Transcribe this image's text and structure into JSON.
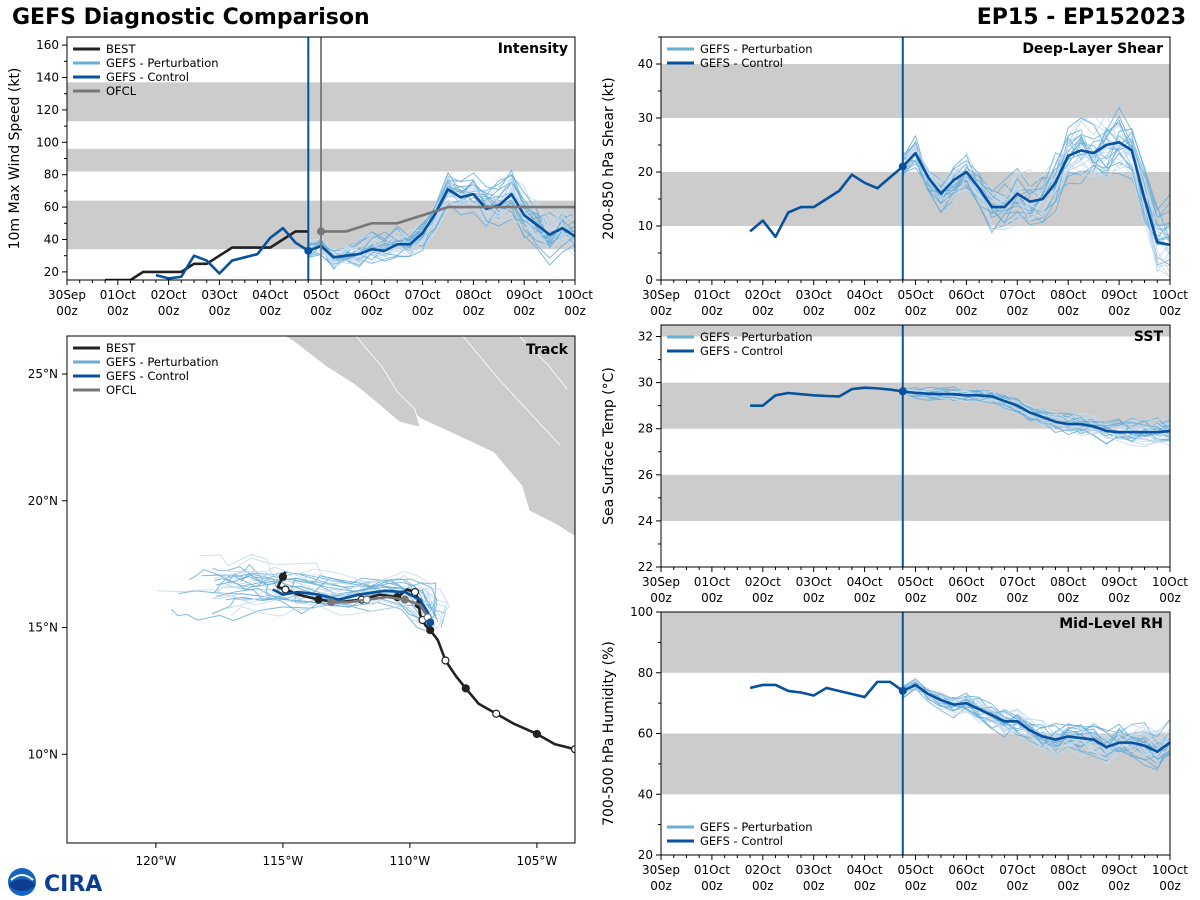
{
  "header": {
    "title": "GEFS Diagnostic Comparison",
    "storm": "EP15 - EP152023"
  },
  "colors": {
    "best": "#222222",
    "perturbation": "#6baed6",
    "perturbation_light": "#c6dbef",
    "control": "#08519c",
    "ofcl": "#777777",
    "band": "#cccccc",
    "land": "#cccccc"
  },
  "time_axis": {
    "ticks": [
      "30Sep",
      "01Oct",
      "02Oct",
      "03Oct",
      "04Oct",
      "05Oct",
      "06Oct",
      "07Oct",
      "08Oct",
      "09Oct",
      "10Oct"
    ],
    "sub": "00z",
    "init_day": 4.75
  },
  "legend_labels": {
    "best": "BEST",
    "perturbation": "GEFS - Perturbation",
    "control": "GEFS - Control",
    "ofcl": "OFCL"
  },
  "logo": {
    "text": "CIRA"
  },
  "chart_data": [
    {
      "id": "intensity",
      "type": "line",
      "title": "Intensity",
      "ylabel": "10m Max Wind Speed (kt)",
      "ylim": [
        15,
        165
      ],
      "yticks": [
        20,
        40,
        60,
        80,
        100,
        120,
        140,
        160
      ],
      "bands": [
        [
          34,
          64
        ],
        [
          82,
          96
        ],
        [
          113,
          137
        ]
      ],
      "xlim": [
        0,
        10
      ],
      "ofcl_marker_day": 5.0,
      "series": [
        {
          "name": "BEST",
          "x": [
            0.75,
            1.25,
            1.5,
            2.0,
            2.25,
            2.5,
            2.75,
            3.0,
            3.25,
            3.5,
            3.75,
            4.0,
            4.25,
            4.5,
            4.75
          ],
          "y": [
            15,
            15,
            20,
            20,
            20,
            25,
            25,
            30,
            35,
            35,
            35,
            35,
            40,
            45,
            45
          ]
        },
        {
          "name": "GEFS - Control",
          "x": [
            1.75,
            2.0,
            2.25,
            2.5,
            2.75,
            3.0,
            3.25,
            3.5,
            3.75,
            4.0,
            4.25,
            4.5,
            4.75,
            5.0,
            5.25,
            5.5,
            5.75,
            6.0,
            6.25,
            6.5,
            6.75,
            7.0,
            7.25,
            7.5,
            7.75,
            8.0,
            8.25,
            8.5,
            8.75,
            9.0,
            9.25,
            9.5,
            9.75,
            10.0
          ],
          "y": [
            18,
            16,
            17,
            30,
            27,
            19,
            27,
            29,
            31,
            41,
            47,
            38,
            33,
            36,
            29,
            30,
            31,
            34,
            33,
            37,
            37,
            44,
            56,
            71,
            66,
            68,
            59,
            61,
            68,
            55,
            49,
            43,
            47,
            42
          ]
        },
        {
          "name": "OFCL",
          "x": [
            5.0,
            5.5,
            6.0,
            6.5,
            7.0,
            7.5,
            8.0,
            8.5,
            9.0,
            9.5,
            10.0
          ],
          "y": [
            45,
            45,
            50,
            50,
            55,
            60,
            60,
            60,
            60,
            60,
            60
          ]
        }
      ]
    },
    {
      "id": "shear",
      "type": "line",
      "title": "Deep-Layer Shear",
      "ylabel": "200-850 hPa Shear (kt)",
      "ylim": [
        0,
        45
      ],
      "yticks": [
        0,
        10,
        20,
        30,
        40
      ],
      "bands": [
        [
          10,
          20
        ],
        [
          30,
          40
        ]
      ],
      "xlim": [
        0,
        10
      ],
      "series": [
        {
          "name": "GEFS - Control",
          "x": [
            1.75,
            2.0,
            2.25,
            2.5,
            2.75,
            3.0,
            3.25,
            3.5,
            3.75,
            4.0,
            4.25,
            4.5,
            4.75,
            5.0,
            5.25,
            5.5,
            5.75,
            6.0,
            6.25,
            6.5,
            6.75,
            7.0,
            7.25,
            7.5,
            7.75,
            8.0,
            8.25,
            8.5,
            8.75,
            9.0,
            9.25,
            9.5,
            9.75,
            10.0
          ],
          "y": [
            9,
            11,
            8,
            12.5,
            13.5,
            13.5,
            15,
            16.5,
            19.5,
            18,
            17,
            19,
            21,
            23.5,
            19,
            16,
            18.5,
            20,
            17,
            13.5,
            13.5,
            16,
            14.5,
            15,
            18,
            23,
            24,
            23.5,
            25,
            25.5,
            24,
            15,
            7,
            6.5
          ]
        }
      ]
    },
    {
      "id": "sst",
      "type": "line",
      "title": "SST",
      "ylabel": "Sea Surface Temp (°C)",
      "ylim": [
        22,
        32.5
      ],
      "yticks": [
        22,
        24,
        26,
        28,
        30,
        32
      ],
      "bands": [
        [
          24,
          26
        ],
        [
          28,
          30
        ],
        [
          32,
          32.5
        ]
      ],
      "xlim": [
        0,
        10
      ],
      "series": [
        {
          "name": "GEFS - Control",
          "x": [
            1.75,
            2.0,
            2.25,
            2.5,
            2.75,
            3.0,
            3.25,
            3.5,
            3.75,
            4.0,
            4.25,
            4.5,
            4.75,
            5.0,
            5.25,
            5.5,
            5.75,
            6.0,
            6.25,
            6.5,
            6.75,
            7.0,
            7.25,
            7.5,
            7.75,
            8.0,
            8.25,
            8.5,
            8.75,
            9.0,
            9.25,
            9.5,
            9.75,
            10.0
          ],
          "y": [
            29.0,
            29.0,
            29.45,
            29.55,
            29.5,
            29.45,
            29.42,
            29.4,
            29.72,
            29.78,
            29.75,
            29.7,
            29.62,
            29.55,
            29.52,
            29.5,
            29.5,
            29.45,
            29.45,
            29.4,
            29.2,
            29.0,
            28.7,
            28.5,
            28.3,
            28.2,
            28.2,
            28.1,
            27.9,
            27.85,
            27.85,
            27.85,
            27.85,
            27.9
          ]
        }
      ]
    },
    {
      "id": "rh",
      "type": "line",
      "title": "Mid-Level RH",
      "ylabel": "700-500 hPa Humidity (%)",
      "ylim": [
        20,
        100
      ],
      "yticks": [
        20,
        40,
        60,
        80,
        100
      ],
      "bands": [
        [
          40,
          60
        ],
        [
          80,
          100
        ]
      ],
      "xlim": [
        0,
        10
      ],
      "series": [
        {
          "name": "GEFS - Control",
          "x": [
            1.75,
            2.0,
            2.25,
            2.5,
            2.75,
            3.0,
            3.25,
            3.5,
            3.75,
            4.0,
            4.25,
            4.5,
            4.75,
            5.0,
            5.25,
            5.5,
            5.75,
            6.0,
            6.25,
            6.5,
            6.75,
            7.0,
            7.25,
            7.5,
            7.75,
            8.0,
            8.25,
            8.5,
            8.75,
            9.0,
            9.25,
            9.5,
            9.75,
            10.0
          ],
          "y": [
            75,
            76,
            76,
            74,
            73.5,
            72.5,
            75,
            74,
            73,
            72,
            77,
            77,
            74,
            76,
            73,
            71,
            69.5,
            70,
            68,
            66,
            64,
            64,
            61,
            59,
            58,
            59,
            58.5,
            58,
            55.5,
            57,
            57,
            56,
            54,
            57
          ]
        }
      ]
    },
    {
      "id": "track",
      "type": "scatter",
      "title": "Track",
      "xlim": [
        -123.5,
        -103.5
      ],
      "ylim": [
        6.5,
        26.5
      ],
      "xticks": [
        -120,
        -115,
        -110,
        -105
      ],
      "xtick_labels": [
        "120°W",
        "115°W",
        "110°W",
        "105°W"
      ],
      "yticks": [
        10,
        15,
        20,
        25
      ],
      "ytick_labels": [
        "10°N",
        "15°N",
        "20°N",
        "25°N"
      ],
      "series": [
        {
          "name": "BEST",
          "lon": [
            -103.5,
            -104.3,
            -105.0,
            -105.9,
            -106.6,
            -107.3,
            -107.8,
            -108.2,
            -108.6,
            -108.9,
            -109.2,
            -109.4,
            -109.5,
            -109.6,
            -109.65,
            -109.7,
            -109.8,
            -110.1,
            -110.5,
            -111.2,
            -111.9,
            -112.8,
            -113.6,
            -114.4,
            -114.9,
            -115.2,
            -115.0,
            -114.9
          ],
          "lat": [
            10.2,
            10.4,
            10.8,
            11.2,
            11.6,
            12.0,
            12.6,
            13.1,
            13.7,
            14.5,
            14.9,
            15.1,
            15.3,
            15.5,
            15.9,
            16.2,
            16.4,
            16.5,
            16.2,
            16.3,
            16.1,
            16.0,
            16.1,
            16.3,
            16.5,
            16.6,
            17.0,
            17.2
          ]
        },
        {
          "name": "GEFS - Control",
          "lon": [
            -109.2,
            -109.3,
            -109.6,
            -110.2,
            -111.0,
            -112.0,
            -112.8,
            -113.6,
            -114.4,
            -115.0,
            -115.4
          ],
          "lat": [
            15.2,
            15.6,
            16.1,
            16.4,
            16.45,
            16.3,
            16.1,
            16.3,
            16.4,
            16.3,
            16.5
          ]
        },
        {
          "name": "OFCL",
          "lon": [
            -109.3,
            -109.6,
            -110.2,
            -110.9,
            -111.7,
            -112.4,
            -113.1
          ],
          "lat": [
            15.4,
            15.9,
            16.1,
            16.2,
            16.1,
            16.0,
            16.0
          ]
        }
      ]
    }
  ]
}
